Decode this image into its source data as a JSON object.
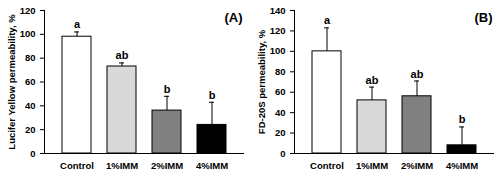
{
  "chart_data": [
    {
      "type": "bar",
      "title": "(A)",
      "y_label": "Lucifer Yellow permeability, %",
      "categories": [
        "Control",
        "1%IMM",
        "2%IMM",
        "4%IMM"
      ],
      "values": [
        98,
        73,
        36,
        24
      ],
      "errors": [
        4,
        3,
        12,
        19
      ],
      "significance": [
        "a",
        "ab",
        "b",
        "b"
      ],
      "colors": [
        "#ffffff",
        "#d9d9d9",
        "#808080",
        "#000000"
      ],
      "ylim": [
        0,
        120
      ],
      "yticks": [
        0,
        20,
        40,
        60,
        80,
        100,
        120
      ]
    },
    {
      "type": "bar",
      "title": "(B)",
      "y_label": "FD-20S permeability, %",
      "categories": [
        "Control",
        "1%IMM",
        "2%IMM",
        "4%IMM"
      ],
      "values": [
        100,
        52,
        56,
        8
      ],
      "errors": [
        23,
        13,
        15,
        18
      ],
      "significance": [
        "a",
        "ab",
        "ab",
        "b"
      ],
      "colors": [
        "#ffffff",
        "#d9d9d9",
        "#808080",
        "#000000"
      ],
      "ylim": [
        0,
        140
      ],
      "yticks": [
        0,
        20,
        40,
        60,
        80,
        100,
        120,
        140
      ]
    }
  ]
}
